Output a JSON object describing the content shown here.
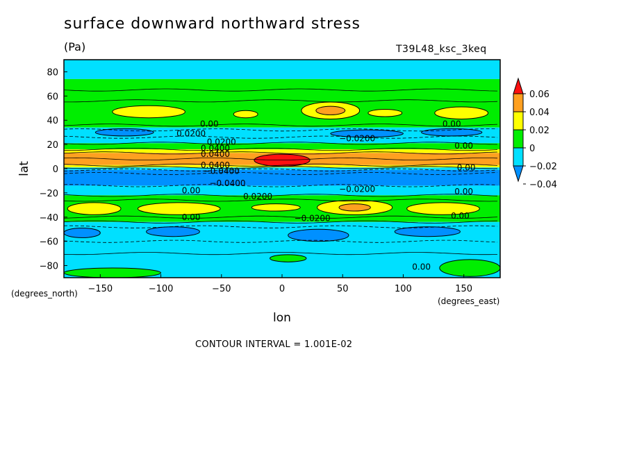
{
  "chart_data": {
    "type": "heatmap",
    "title": "surface downward northward stress",
    "units": "(Pa)",
    "run_id": "T39L48_ksc_3keq",
    "xlabel": "lon",
    "ylabel": "lat",
    "x_units": "(degrees_east)",
    "y_units": "(degrees_north)",
    "xlim": [
      -180,
      180
    ],
    "ylim": [
      -90,
      90
    ],
    "x_ticks": [
      -150,
      -100,
      -50,
      0,
      50,
      100,
      150
    ],
    "y_ticks": [
      80,
      60,
      40,
      20,
      0,
      -20,
      -40,
      -60,
      -80
    ],
    "colorbar": {
      "levels": [
        0.06,
        0.04,
        0.02,
        0,
        -0.02,
        -0.04
      ],
      "level_labels": [
        "0.06",
        "0.04",
        "0.02",
        "0",
        "−0.02",
        "−0.04"
      ],
      "colors": [
        "#ff1010",
        "#ffa020",
        "#ffff00",
        "#00ee00",
        "#00e0ff",
        "#0090ff"
      ]
    },
    "bands": [
      {
        "lat_top": 90,
        "lat_bottom": 74,
        "color": "#00e0ff"
      },
      {
        "lat_top": 74,
        "lat_bottom": 34,
        "color": "#00ee00"
      },
      {
        "lat_top": 34,
        "lat_bottom": 21,
        "color": "#00e0ff"
      },
      {
        "lat_top": 21,
        "lat_bottom": 16,
        "color": "#00ee00"
      },
      {
        "lat_top": 16,
        "lat_bottom": 13,
        "color": "#ffff00"
      },
      {
        "lat_top": 13,
        "lat_bottom": 3,
        "color": "#ffa020"
      },
      {
        "lat_top": 3,
        "lat_bottom": 1,
        "color": "#ffff00"
      },
      {
        "lat_top": 1,
        "lat_bottom": -1,
        "color": "#00e0ff"
      },
      {
        "lat_top": -1,
        "lat_bottom": -14,
        "color": "#0090ff"
      },
      {
        "lat_top": -14,
        "lat_bottom": -22,
        "color": "#00e0ff"
      },
      {
        "lat_top": -22,
        "lat_bottom": -44,
        "color": "#00ee00"
      },
      {
        "lat_top": -44,
        "lat_bottom": -90,
        "color": "#00e0ff"
      }
    ],
    "cells": [
      {
        "lon": -110,
        "lat": 47,
        "w": 60,
        "h": 10,
        "color": "#ffff00"
      },
      {
        "lon": -30,
        "lat": 45,
        "w": 20,
        "h": 6,
        "color": "#ffff00"
      },
      {
        "lon": 40,
        "lat": 48,
        "w": 48,
        "h": 14,
        "color": "#ffff00"
      },
      {
        "lon": 40,
        "lat": 48,
        "w": 24,
        "h": 7,
        "color": "#ffa020"
      },
      {
        "lon": 85,
        "lat": 46,
        "w": 28,
        "h": 6,
        "color": "#ffff00"
      },
      {
        "lon": 148,
        "lat": 46,
        "w": 44,
        "h": 10,
        "color": "#ffff00"
      },
      {
        "lon": -130,
        "lat": 30,
        "w": 48,
        "h": 6,
        "color": "#0090ff"
      },
      {
        "lon": 70,
        "lat": 29,
        "w": 60,
        "h": 6,
        "color": "#0090ff"
      },
      {
        "lon": 140,
        "lat": 30,
        "w": 50,
        "h": 6,
        "color": "#0090ff"
      },
      {
        "lon": 0,
        "lat": 7,
        "w": 46,
        "h": 10,
        "color": "#ff1010"
      },
      {
        "lon": -155,
        "lat": -33,
        "w": 44,
        "h": 10,
        "color": "#ffff00"
      },
      {
        "lon": -85,
        "lat": -33,
        "w": 68,
        "h": 10,
        "color": "#ffff00"
      },
      {
        "lon": -5,
        "lat": -32,
        "w": 40,
        "h": 6,
        "color": "#ffff00"
      },
      {
        "lon": 60,
        "lat": -32,
        "w": 62,
        "h": 12,
        "color": "#ffff00"
      },
      {
        "lon": 60,
        "lat": -32,
        "w": 26,
        "h": 6,
        "color": "#ffa020"
      },
      {
        "lon": 133,
        "lat": -33,
        "w": 60,
        "h": 10,
        "color": "#ffff00"
      },
      {
        "lon": -165,
        "lat": -53,
        "w": 30,
        "h": 8,
        "color": "#0090ff"
      },
      {
        "lon": -90,
        "lat": -52,
        "w": 44,
        "h": 8,
        "color": "#0090ff"
      },
      {
        "lon": 30,
        "lat": -55,
        "w": 50,
        "h": 10,
        "color": "#0090ff"
      },
      {
        "lon": 120,
        "lat": -52,
        "w": 54,
        "h": 8,
        "color": "#0090ff"
      },
      {
        "lon": 5,
        "lat": -74,
        "w": 30,
        "h": 6,
        "color": "#00ee00"
      },
      {
        "lon": -140,
        "lat": -86,
        "w": 80,
        "h": 8,
        "color": "#00ee00"
      },
      {
        "lon": 155,
        "lat": -82,
        "w": 50,
        "h": 14,
        "color": "#00ee00"
      }
    ],
    "contour_lines": [
      {
        "lat": 65,
        "style": "solid"
      },
      {
        "lat": 56,
        "style": "solid"
      },
      {
        "lat": 36,
        "style": "solid"
      },
      {
        "lat": 32,
        "style": "dashed"
      },
      {
        "lat": 26,
        "style": "dashed"
      },
      {
        "lat": 21,
        "style": "solid"
      },
      {
        "lat": 16,
        "style": "solid"
      },
      {
        "lat": 13,
        "style": "solid"
      },
      {
        "lat": 8,
        "style": "solid"
      },
      {
        "lat": 3,
        "style": "solid"
      },
      {
        "lat": 1,
        "style": "solid"
      },
      {
        "lat": -1,
        "style": "dashed"
      },
      {
        "lat": -4,
        "style": "dashed"
      },
      {
        "lat": -14,
        "style": "dashed"
      },
      {
        "lat": -22,
        "style": "solid"
      },
      {
        "lat": -26,
        "style": "solid"
      },
      {
        "lat": -40,
        "style": "solid"
      },
      {
        "lat": -44,
        "style": "solid"
      },
      {
        "lat": -48,
        "style": "dashed"
      },
      {
        "lat": -60,
        "style": "dashed"
      },
      {
        "lat": -70,
        "style": "solid"
      }
    ],
    "contour_labels": [
      {
        "lon": -60,
        "lat": 37,
        "text": "0.00"
      },
      {
        "lon": -75,
        "lat": 29,
        "text": "0.0200"
      },
      {
        "lon": -50,
        "lat": 22,
        "text": "0.0200"
      },
      {
        "lon": -55,
        "lat": 17,
        "text": "0.0400"
      },
      {
        "lon": -55,
        "lat": 12,
        "text": "0.0400"
      },
      {
        "lon": -55,
        "lat": 3,
        "text": "0.0400"
      },
      {
        "lon": -50,
        "lat": -2,
        "text": "−0.0400"
      },
      {
        "lon": -45,
        "lat": -12,
        "text": "−0.0400"
      },
      {
        "lon": -75,
        "lat": -18,
        "text": "0.00"
      },
      {
        "lon": -20,
        "lat": -23,
        "text": "0.0200"
      },
      {
        "lon": -75,
        "lat": -40,
        "text": "0.00"
      },
      {
        "lon": 25,
        "lat": -41,
        "text": "−0.0200"
      },
      {
        "lon": 62,
        "lat": 25,
        "text": "−0.0200"
      },
      {
        "lon": 62,
        "lat": -17,
        "text": "−0.0200"
      },
      {
        "lon": 140,
        "lat": 37,
        "text": "0.00"
      },
      {
        "lon": 150,
        "lat": 19,
        "text": "0.00"
      },
      {
        "lon": 152,
        "lat": 1,
        "text": "0.00"
      },
      {
        "lon": 150,
        "lat": -19,
        "text": "0.00"
      },
      {
        "lon": 147,
        "lat": -39,
        "text": "0.00"
      },
      {
        "lon": 115,
        "lat": -81,
        "text": "0.00"
      }
    ]
  },
  "contour_interval": "CONTOUR INTERVAL = 1.001E-02"
}
